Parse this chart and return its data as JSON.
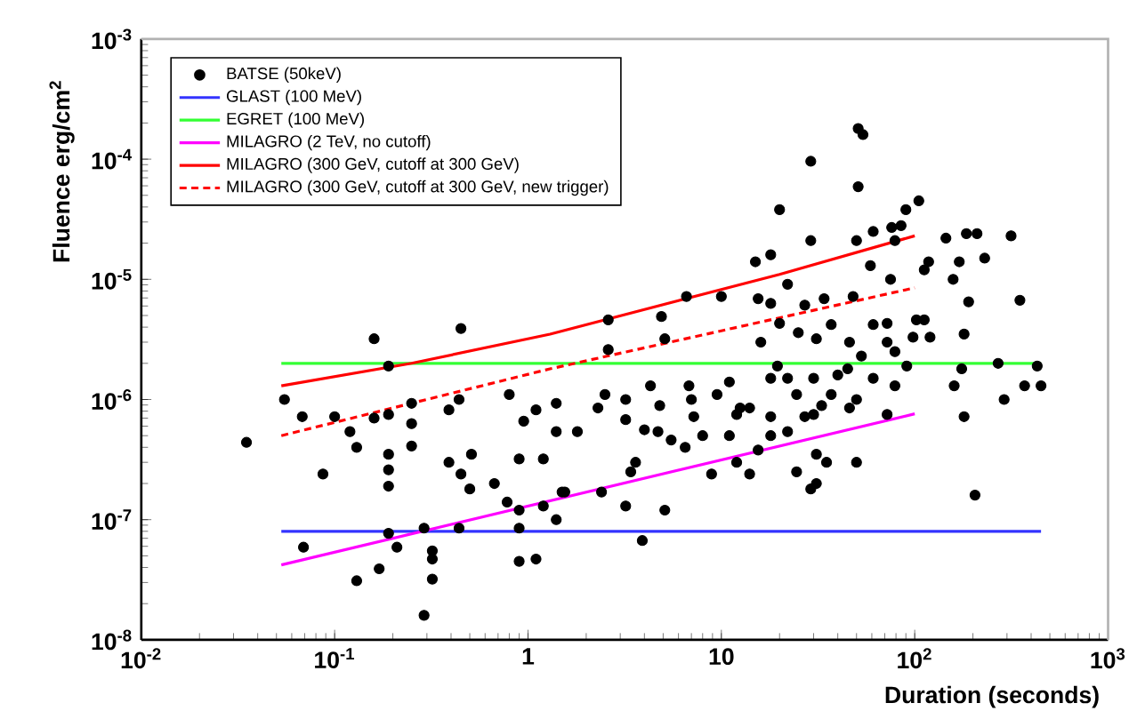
{
  "chart_data": {
    "type": "scatter",
    "xlabel": "Duration (seconds)",
    "ylabel": "Fluence erg/cm$^{2}$",
    "log": "xy",
    "xlim": [
      0.01,
      1000
    ],
    "ylim": [
      1e-08,
      0.001
    ],
    "xticks": [
      {
        "value": 0.01,
        "label": "10$^{-2}$"
      },
      {
        "value": 0.1,
        "label": "10$^{-1}$"
      },
      1,
      10,
      {
        "value": 100,
        "label": "10$^{2}$"
      },
      {
        "value": 1000,
        "label": "10$^{3}$"
      }
    ],
    "yticks": [
      {
        "value": 1e-08,
        "label": "10$^{-8}$"
      },
      {
        "value": 1e-07,
        "label": "10$^{-7}$"
      },
      {
        "value": 1e-06,
        "label": "10$^{-6}$"
      },
      {
        "value": 1e-05,
        "label": "10$^{-5}$"
      },
      {
        "value": 0.0001,
        "label": "10$^{-4}$"
      },
      {
        "value": 0.001,
        "label": "10$^{-3}$"
      }
    ],
    "grid": false,
    "legend": "top left",
    "series": [
      {
        "name": "BATSE (50keV)",
        "type": "scatter",
        "color": "#000000",
        "marker": "circle",
        "x": [
          0.035,
          0.055,
          0.068,
          0.087,
          0.1,
          0.12,
          0.13,
          0.16,
          0.19,
          0.19,
          0.19,
          0.19,
          0.25,
          0.25,
          0.25,
          0.39,
          0.44,
          0.39,
          0.45,
          0.51,
          0.5,
          0.67,
          0.8,
          0.95,
          1.1,
          0.9,
          1.2,
          1.4,
          1.4,
          1.8,
          1.55,
          0.78,
          0.9,
          1.2,
          1.4,
          0.9,
          0.069,
          0.19,
          0.21,
          0.17,
          0.13,
          0.29,
          0.32,
          0.32,
          0.32,
          0.29,
          0.44,
          0.9,
          1.1,
          0.16,
          0.45,
          0.19,
          2.6,
          2.5,
          2.3,
          3.2,
          3.2,
          4.3,
          4.8,
          4.0,
          4.7,
          5.5,
          6.5,
          6.8,
          7.0,
          7.2,
          8,
          9.5,
          11,
          11,
          12,
          12.5,
          14,
          3.6,
          3.4,
          2.4,
          1.5,
          3.2,
          5.1,
          3.9,
          8.9,
          12,
          14,
          15.5,
          18,
          18,
          18,
          19.5,
          22,
          24.5,
          22,
          24.5,
          29,
          31,
          31,
          35,
          27,
          30,
          33,
          37,
          40,
          46,
          50,
          30,
          50,
          45,
          53,
          61,
          72,
          79,
          91,
          160,
          175,
          180,
          205,
          270,
          290,
          370,
          450,
          430,
          51,
          54,
          29,
          51,
          20,
          105,
          90,
          61,
          76,
          85,
          79,
          29,
          50,
          145,
          185,
          210,
          315,
          18,
          15,
          59,
          118,
          170,
          230,
          75,
          112,
          158,
          22,
          6.6,
          10,
          2.6,
          4.9,
          5.1,
          15.5,
          18,
          27,
          34,
          48,
          190,
          350,
          20,
          37,
          61,
          72,
          102,
          112,
          180,
          16,
          25,
          31,
          46,
          72,
          98,
          120,
          79
        ],
        "values": [
          4.4e-07,
          1e-06,
          7.2e-07,
          2.4e-07,
          7.2e-07,
          5.4e-07,
          4e-07,
          7e-07,
          7.5e-07,
          3.5e-07,
          2.6e-07,
          1.9e-07,
          9.3e-07,
          6.3e-07,
          4.1e-07,
          8.2e-07,
          1e-06,
          3e-07,
          2.4e-07,
          3.5e-07,
          1.8e-07,
          2e-07,
          1.1e-06,
          6.6e-07,
          8.2e-07,
          3.2e-07,
          3.2e-07,
          9.3e-07,
          5.4e-07,
          5.4e-07,
          1.7e-07,
          1.4e-07,
          1.2e-07,
          1.3e-07,
          1e-07,
          8.5e-08,
          5.9e-08,
          7.7e-08,
          5.9e-08,
          3.9e-08,
          3.1e-08,
          8.5e-08,
          5.5e-08,
          4.7e-08,
          3.2e-08,
          1.6e-08,
          8.5e-08,
          4.5e-08,
          4.7e-08,
          3.2e-06,
          3.9e-06,
          1.9e-06,
          2.6e-06,
          1.1e-06,
          8.5e-07,
          1e-06,
          6.8e-07,
          1.3e-06,
          8.9e-07,
          5.6e-07,
          5.4e-07,
          4.6e-07,
          4e-07,
          1.3e-06,
          1e-06,
          7.2e-07,
          5e-07,
          1.1e-06,
          1.4e-06,
          5e-07,
          7.5e-07,
          8.5e-07,
          8.5e-07,
          3e-07,
          2.5e-07,
          1.7e-07,
          1.7e-07,
          1.3e-07,
          1.2e-07,
          6.7e-08,
          2.4e-07,
          3e-07,
          2.4e-07,
          3.8e-07,
          5e-07,
          7.2e-07,
          1.5e-06,
          1.9e-06,
          1.5e-06,
          1.1e-06,
          5.4e-07,
          2.5e-07,
          1.8e-07,
          2e-07,
          3.5e-07,
          3e-07,
          7.2e-07,
          7.5e-07,
          8.9e-07,
          1.1e-06,
          1.6e-06,
          8.5e-07,
          3e-07,
          1.5e-06,
          1e-06,
          1.8e-06,
          2.3e-06,
          1.5e-06,
          7.5e-07,
          1.3e-06,
          1.9e-06,
          1.3e-06,
          1.8e-06,
          7.2e-07,
          1.6e-07,
          2e-06,
          1e-06,
          1.3e-06,
          1.3e-06,
          1.9e-06,
          0.00018,
          0.00016,
          9.6e-05,
          5.9e-05,
          3.8e-05,
          4.5e-05,
          3.8e-05,
          2.5e-05,
          2.7e-05,
          2.8e-05,
          2.1e-05,
          2.1e-05,
          2.1e-05,
          2.2e-05,
          2.4e-05,
          2.4e-05,
          2.3e-05,
          1.6e-05,
          1.4e-05,
          1.3e-05,
          1.4e-05,
          1.4e-05,
          1.5e-05,
          1e-05,
          1.2e-05,
          1e-05,
          9.1e-06,
          7.2e-06,
          7.2e-06,
          4.6e-06,
          4.9e-06,
          3.2e-06,
          6.9e-06,
          6.3e-06,
          6.1e-06,
          6.9e-06,
          7.2e-06,
          6.5e-06,
          6.7e-06,
          4.3e-06,
          4.2e-06,
          4.2e-06,
          4.3e-06,
          4.6e-06,
          4.6e-06,
          3.5e-06,
          3e-06,
          3.6e-06,
          3.2e-06,
          3e-06,
          3e-06,
          3.3e-06,
          3.3e-06,
          2.5e-06
        ]
      },
      {
        "name": "GLAST (100 MeV)",
        "type": "line",
        "color": "#3333ff",
        "line_style": "solid",
        "x": [
          0.053,
          450
        ],
        "values": [
          8e-08,
          8e-08
        ]
      },
      {
        "name": "EGRET (100 MeV)",
        "type": "line",
        "color": "#33ff33",
        "line_style": "solid",
        "x": [
          0.053,
          450
        ],
        "values": [
          2e-06,
          2e-06
        ]
      },
      {
        "name": "MILAGRO (2 TeV, no cutoff)",
        "type": "line",
        "color": "#ff00ff",
        "line_style": "solid",
        "x": [
          0.053,
          100
        ],
        "values": [
          4.2e-08,
          7.6e-07
        ]
      },
      {
        "name": "MILAGRO (300 GeV, cutoff at 300 GeV)",
        "type": "line",
        "color": "#ff0000",
        "line_style": "solid",
        "x": [
          0.053,
          0.25,
          1.3,
          20,
          100
        ],
        "values": [
          1.3e-06,
          2e-06,
          3.5e-06,
          1.1e-05,
          2.3e-05
        ]
      },
      {
        "name": "MILAGRO (300 GeV, cutoff at 300 GeV, new trigger)",
        "type": "line",
        "color": "#ff0000",
        "line_style": "dashed",
        "x": [
          0.053,
          1.3,
          100
        ],
        "values": [
          5e-07,
          1.8e-06,
          8.5e-06
        ]
      }
    ]
  }
}
